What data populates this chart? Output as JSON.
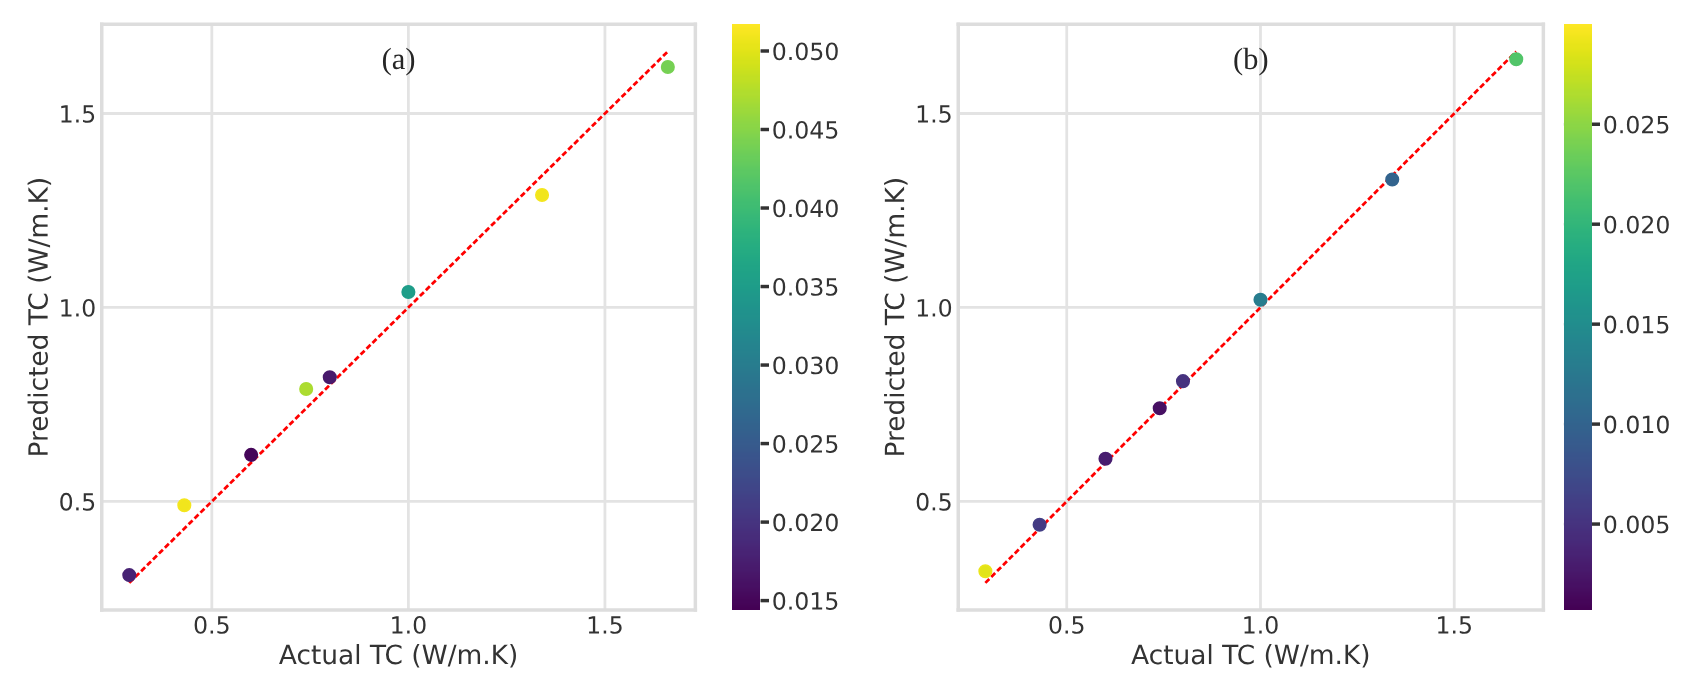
{
  "chart_data": [
    {
      "type": "scatter",
      "title": "(a)",
      "xlabel": "Actual TC (W/m.K)",
      "ylabel": "Predicted TC (W/m.K)",
      "xlim": [
        0.22,
        1.73
      ],
      "ylim": [
        0.22,
        1.73
      ],
      "xticks": [
        {
          "value": 0.5,
          "label": "0.5"
        },
        {
          "value": 1,
          "label": "1.0"
        },
        {
          "value": 1.5,
          "label": "1.5"
        }
      ],
      "yticks": [
        {
          "value": 0.5,
          "label": "0.5"
        },
        {
          "value": 1,
          "label": "1.0"
        },
        {
          "value": 1.5,
          "label": "1.5"
        }
      ],
      "grid": true,
      "clim": [
        0.0144,
        0.0517
      ],
      "cticks": [
        {
          "value": 0.015,
          "label": "0.015"
        },
        {
          "value": 0.02,
          "label": "0.020"
        },
        {
          "value": 0.025,
          "label": "0.025"
        },
        {
          "value": 0.03,
          "label": "0.030"
        },
        {
          "value": 0.035,
          "label": "0.035"
        },
        {
          "value": 0.04,
          "label": "0.040"
        },
        {
          "value": 0.045,
          "label": "0.045"
        },
        {
          "value": 0.05,
          "label": "0.050"
        }
      ],
      "series": [
        {
          "type": "scatter",
          "marker": "circle",
          "x": [
            0.29,
            0.43,
            0.6,
            0.74,
            0.8,
            1.0,
            1.34,
            1.66
          ],
          "values": [
            0.31,
            0.49,
            0.62,
            0.79,
            0.82,
            1.04,
            1.29,
            1.62
          ],
          "cvalues": [
            0.018,
            0.051,
            0.015,
            0.047,
            0.017,
            0.035,
            0.051,
            0.044
          ],
          "colors": [
            "#472374",
            "#f1e51d",
            "#450559",
            "#addc30",
            "#481a6c",
            "#1f9e89",
            "#f1e51d",
            "#75d054"
          ]
        },
        {
          "type": "line",
          "color": "#ff0000",
          "line_style": "dashed",
          "x": [
            0.29,
            1.66
          ],
          "values": [
            0.29,
            1.66
          ]
        }
      ]
    },
    {
      "type": "scatter",
      "title": "(b)",
      "xlabel": "Actual TC (W/m.K)",
      "ylabel": "Predicted TC (W/m.K)",
      "xlim": [
        0.22,
        1.73
      ],
      "ylim": [
        0.22,
        1.73
      ],
      "xticks": [
        {
          "value": 0.5,
          "label": "0.5"
        },
        {
          "value": 1,
          "label": "1.0"
        },
        {
          "value": 1.5,
          "label": "1.5"
        }
      ],
      "yticks": [
        {
          "value": 0.5,
          "label": "0.5"
        },
        {
          "value": 1,
          "label": "1.0"
        },
        {
          "value": 1.5,
          "label": "1.5"
        }
      ],
      "grid": true,
      "clim": [
        0.0007,
        0.03
      ],
      "cticks": [
        {
          "value": 0.005,
          "label": "0.005"
        },
        {
          "value": 0.01,
          "label": "0.010"
        },
        {
          "value": 0.015,
          "label": "0.015"
        },
        {
          "value": 0.02,
          "label": "0.020"
        },
        {
          "value": 0.025,
          "label": "0.025"
        }
      ],
      "series": [
        {
          "type": "scatter",
          "marker": "circle",
          "x": [
            0.29,
            0.43,
            0.6,
            0.74,
            0.8,
            1.0,
            1.34,
            1.66
          ],
          "values": [
            0.32,
            0.44,
            0.61,
            0.74,
            0.81,
            1.02,
            1.33,
            1.64
          ],
          "cvalues": [
            0.029,
            0.006,
            0.003,
            0.002,
            0.005,
            0.013,
            0.01,
            0.022
          ],
          "colors": [
            "#e2e418",
            "#443a83",
            "#481d6f",
            "#471063",
            "#46327e",
            "#287d8e",
            "#33638d",
            "#52c569"
          ]
        },
        {
          "type": "line",
          "color": "#ff0000",
          "line_style": "dashed",
          "x": [
            0.29,
            1.66
          ],
          "values": [
            0.29,
            1.66
          ]
        }
      ]
    }
  ]
}
